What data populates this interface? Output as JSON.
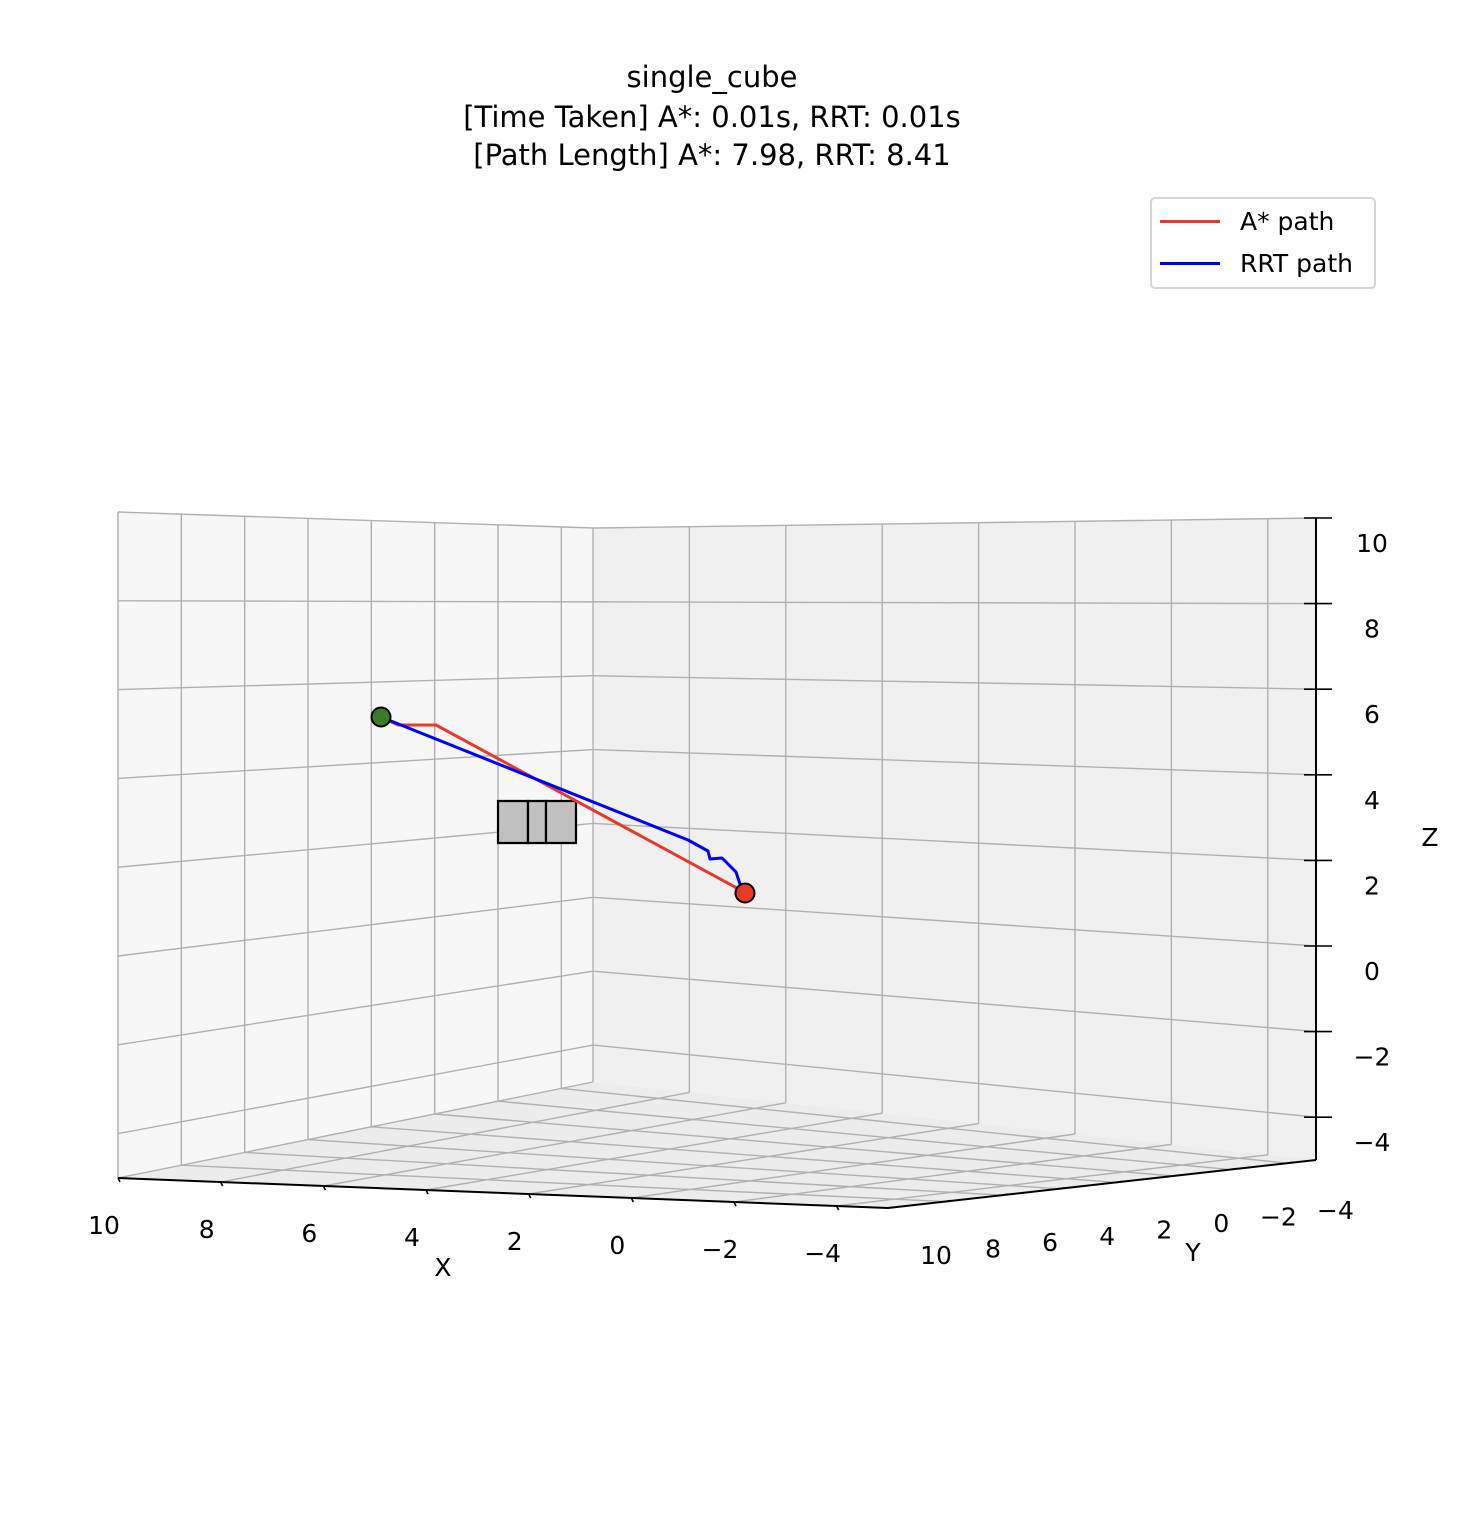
{
  "chart_data": {
    "type": "line",
    "projection": "3d",
    "title": [
      "single_cube",
      "[Time Taken] A*: 0.01s, RRT: 0.01s",
      "[Path Length] A*: 7.98, RRT: 8.41"
    ],
    "xlabel": "X",
    "ylabel": "Y",
    "zlabel": "Z",
    "xlim": [
      -5,
      10
    ],
    "ylim": [
      -5,
      10
    ],
    "zlim": [
      -5,
      10
    ],
    "xticks": [
      "10",
      "8",
      "6",
      "4",
      "2",
      "0",
      "−2",
      "−4"
    ],
    "yticks": [
      "10",
      "8",
      "6",
      "4",
      "2",
      "0",
      "−2",
      "−4"
    ],
    "zticks": [
      "10",
      "8",
      "6",
      "4",
      "2",
      "0",
      "−2",
      "−4"
    ],
    "grid": true,
    "legend_position": "top-right",
    "series": [
      {
        "name": "A* path",
        "color": "#e8392b"
      },
      {
        "name": "RRT path",
        "color": "#0000ff"
      }
    ],
    "start": {
      "color": "#3a7a2a"
    },
    "goal": {
      "color": "#e8392b"
    },
    "obstacle": {
      "shape": "cube",
      "color": "#c0c0c0"
    }
  }
}
